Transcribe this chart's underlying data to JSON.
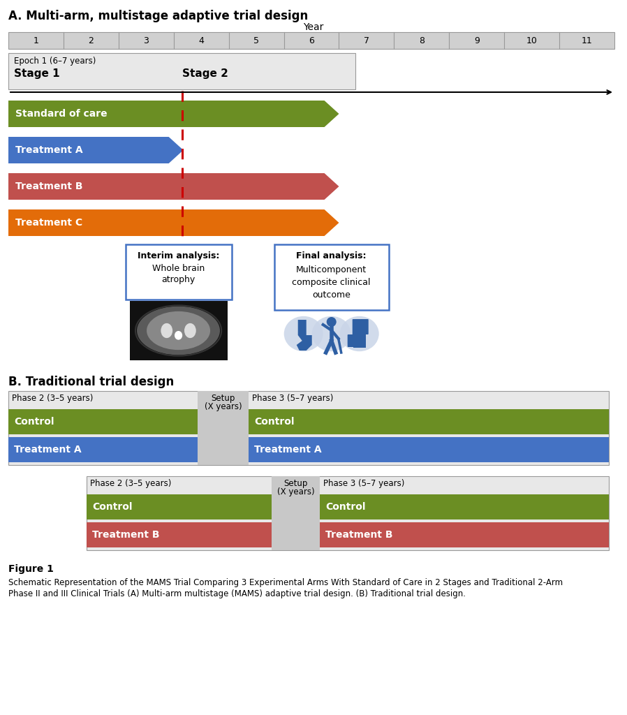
{
  "title_a": "A. Multi-arm, multistage adaptive trial design",
  "title_b": "B. Traditional trial design",
  "year_label": "Year",
  "years": [
    "1",
    "2",
    "3",
    "4",
    "5",
    "6",
    "7",
    "8",
    "9",
    "10",
    "11"
  ],
  "colors": {
    "green": "#6b8e23",
    "blue": "#4472c4",
    "dark_red": "#c0504d",
    "orange": "#e36c09",
    "light_gray": "#d0d0d0",
    "mid_gray": "#c8c8c8",
    "dark_gray": "#999999",
    "white": "#ffffff",
    "black": "#000000",
    "epoch_bg": "#e8e8e8",
    "box_blue": "#4472c4",
    "dashed_red": "#cc0000",
    "icon_blue": "#2e5fa3",
    "icon_bg": "#c9d5e8"
  },
  "figure_caption": "Figure 1",
  "figure_text_1": "Schematic Representation of the MAMS Trial Comparing 3 Experimental Arms With Standard of Care in 2 Stages and Traditional 2-Arm",
  "figure_text_2": "Phase II and III Clinical Trials (A) Multi-arm multistage (MAMS) adaptive trial design. (B) Traditional trial design."
}
